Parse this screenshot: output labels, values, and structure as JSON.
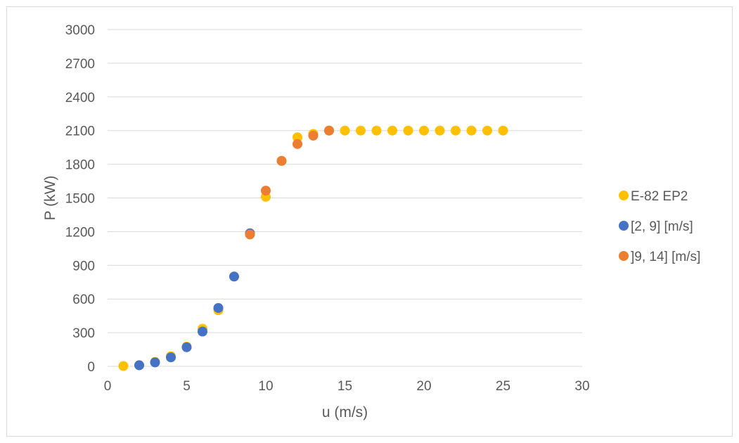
{
  "chart_data": {
    "type": "scatter",
    "xlabel": "u (m/s)",
    "ylabel": "P (kW)",
    "xlim": [
      0,
      30
    ],
    "ylim": [
      0,
      3000
    ],
    "x_ticks": [
      "0",
      "5",
      "10",
      "15",
      "20",
      "25",
      "30"
    ],
    "y_ticks": [
      "0",
      "300",
      "600",
      "900",
      "1200",
      "1500",
      "1800",
      "2100",
      "2400",
      "2700",
      "3000"
    ],
    "grid": "horizontal",
    "legend_position": "right",
    "series": [
      {
        "name": "E-82 EP2",
        "color": "#FFC000",
        "points": [
          [
            1,
            3
          ],
          [
            2,
            10
          ],
          [
            3,
            40
          ],
          [
            4,
            90
          ],
          [
            5,
            175
          ],
          [
            6,
            335
          ],
          [
            7,
            500
          ],
          [
            8,
            800
          ],
          [
            9,
            1180
          ],
          [
            10,
            1510
          ],
          [
            11,
            1830
          ],
          [
            12,
            2040
          ],
          [
            13,
            2070
          ],
          [
            14,
            2100
          ],
          [
            15,
            2100
          ],
          [
            16,
            2100
          ],
          [
            17,
            2100
          ],
          [
            18,
            2100
          ],
          [
            19,
            2100
          ],
          [
            20,
            2100
          ],
          [
            21,
            2100
          ],
          [
            22,
            2100
          ],
          [
            23,
            2100
          ],
          [
            24,
            2100
          ],
          [
            25,
            2100
          ]
        ]
      },
      {
        "name": "[2, 9] [m/s]",
        "color": "#4472C4",
        "points": [
          [
            2,
            10
          ],
          [
            3,
            35
          ],
          [
            4,
            80
          ],
          [
            5,
            170
          ],
          [
            6,
            310
          ],
          [
            7,
            520
          ],
          [
            8,
            800
          ],
          [
            9,
            1185
          ]
        ]
      },
      {
        "name": "]9, 14] [m/s]",
        "color": "#ED7D31",
        "points": [
          [
            9,
            1175
          ],
          [
            10,
            1565
          ],
          [
            11,
            1830
          ],
          [
            12,
            1980
          ],
          [
            13,
            2055
          ],
          [
            14,
            2100
          ]
        ]
      }
    ]
  }
}
